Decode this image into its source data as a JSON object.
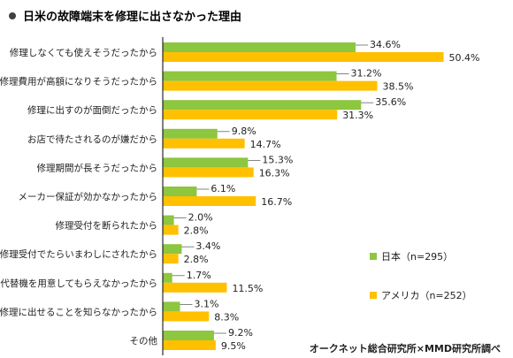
{
  "title": "日米の故障端末を修理に出さなかった理由",
  "credit": "オークネット総合研究所×MMD研究所調べ",
  "colors": {
    "japan": "#8DC63F",
    "usa": "#FFC000",
    "axis": "#000000",
    "bullet": "#404040"
  },
  "chart_data": {
    "type": "bar",
    "orientation": "horizontal",
    "title": "日米の故障端末を修理に出さなかった理由",
    "categories": [
      "修理しなくても使えそうだったから",
      "修理費用が高額になりそうだったから",
      "修理に出すのが面倒だったから",
      "お店で待たされるのが嫌だから",
      "修理期間が長そうだったから",
      "メーカー保証が効かなかったから",
      "修理受付を断られたから",
      "修理受付でたらいまわしにされたから",
      "代替機を用意してもらえなかったから",
      "修理に出せることを知らなかったから",
      "その他"
    ],
    "series": [
      {
        "name": "日本（n=295）",
        "color": "#8DC63F",
        "values": [
          34.6,
          31.2,
          35.6,
          9.8,
          15.3,
          6.1,
          2.0,
          3.4,
          1.7,
          3.1,
          9.2
        ],
        "labels": [
          "34.6%",
          "31.2%",
          "35.6%",
          "9.8%",
          "15.3%",
          "6.1%",
          "2.0%",
          "3.4%",
          "1.7%",
          "3.1%",
          "9.2%"
        ]
      },
      {
        "name": "アメリカ（n=252）",
        "color": "#FFC000",
        "values": [
          50.4,
          38.5,
          31.3,
          14.7,
          16.3,
          16.7,
          2.8,
          2.8,
          11.5,
          8.3,
          9.5
        ],
        "labels": [
          "50.4%",
          "38.5%",
          "31.3%",
          "14.7%",
          "16.3%",
          "16.7%",
          "2.8%",
          "2.8%",
          "11.5%",
          "8.3%",
          "9.5%"
        ]
      }
    ],
    "xlim": [
      0,
      60
    ],
    "grid": false,
    "legend": "right"
  }
}
